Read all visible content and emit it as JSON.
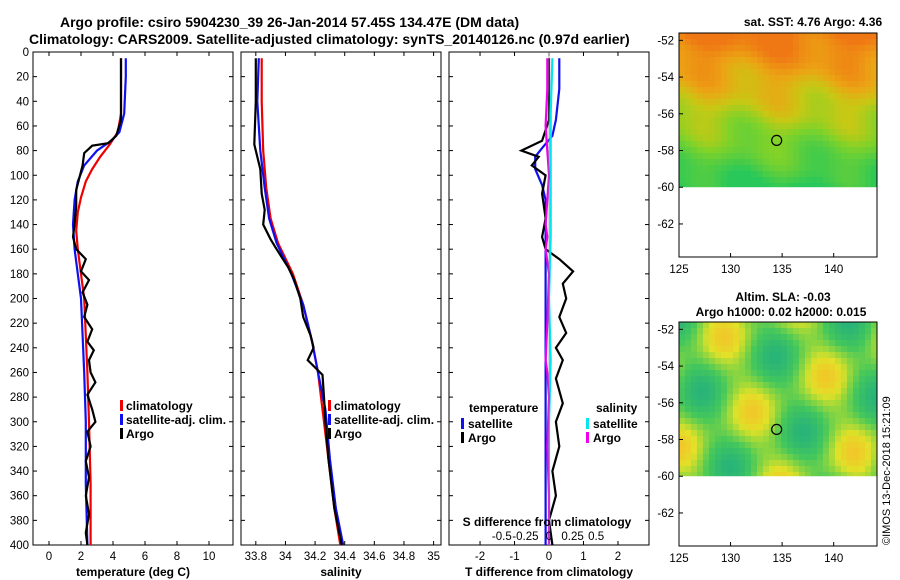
{
  "title": {
    "line1": "Argo profile: csiro 5904230_39 26-Jan-2014 57.45S 134.47E (DM data)",
    "line2": "Climatology: CARS2009. Satellite-adjusted climatology: synTS_20140126.nc (0.97d earlier)"
  },
  "colors": {
    "climatology": "#ee0000",
    "satellite": "#1010ee",
    "argo": "#000000",
    "sal_satellite": "#00e5ee",
    "sal_argo": "#ee00ee"
  },
  "chart_data": [
    {
      "id": "temperature",
      "type": "line",
      "xlabel": "temperature (deg C)",
      "xlim": [
        -1,
        11.5
      ],
      "xticks": [
        0,
        2,
        4,
        6,
        8,
        10
      ],
      "xtick_labels": [
        "0",
        "2",
        "4",
        "6",
        "8",
        "10"
      ],
      "ylim": [
        0,
        400
      ],
      "yticks": [
        0,
        20,
        40,
        60,
        80,
        100,
        120,
        140,
        160,
        180,
        200,
        220,
        240,
        260,
        280,
        300,
        320,
        340,
        360,
        380,
        400
      ],
      "ytick_labels": [
        "0",
        "20",
        "40",
        "60",
        "80",
        "100",
        "120",
        "140",
        "160",
        "180",
        "200",
        "220",
        "240",
        "260",
        "280",
        "300",
        "320",
        "340",
        "360",
        "380",
        "400"
      ],
      "legend": [
        "climatology",
        "satellite-adj. clim.",
        "Argo"
      ],
      "series": [
        {
          "name": "climatology",
          "color": "#ee0000",
          "points": [
            [
              4.5,
              5
            ],
            [
              4.5,
              20
            ],
            [
              4.5,
              50
            ],
            [
              4.3,
              65
            ],
            [
              3.8,
              75
            ],
            [
              3.2,
              85
            ],
            [
              2.7,
              95
            ],
            [
              2.3,
              105
            ],
            [
              2.0,
              118
            ],
            [
              1.8,
              130
            ],
            [
              1.7,
              145
            ],
            [
              1.8,
              160
            ],
            [
              2.0,
              180
            ],
            [
              2.2,
              200
            ],
            [
              2.3,
              230
            ],
            [
              2.4,
              260
            ],
            [
              2.5,
              300
            ],
            [
              2.6,
              350
            ],
            [
              2.6,
              400
            ]
          ]
        },
        {
          "name": "satellite-adj. clim.",
          "color": "#1010ee",
          "points": [
            [
              4.8,
              5
            ],
            [
              4.8,
              20
            ],
            [
              4.7,
              50
            ],
            [
              4.4,
              65
            ],
            [
              3.9,
              72
            ],
            [
              3.0,
              80
            ],
            [
              2.2,
              92
            ],
            [
              1.8,
              105
            ],
            [
              1.6,
              120
            ],
            [
              1.5,
              140
            ],
            [
              1.6,
              160
            ],
            [
              1.8,
              180
            ],
            [
              2.0,
              200
            ],
            [
              2.1,
              230
            ],
            [
              2.2,
              260
            ],
            [
              2.3,
              300
            ],
            [
              2.3,
              350
            ],
            [
              2.4,
              400
            ]
          ]
        },
        {
          "name": "Argo",
          "color": "#000000",
          "points": [
            [
              4.5,
              5
            ],
            [
              4.5,
              30
            ],
            [
              4.5,
              55
            ],
            [
              4.2,
              68
            ],
            [
              3.7,
              74
            ],
            [
              2.7,
              76
            ],
            [
              2.2,
              82
            ],
            [
              2.1,
              92
            ],
            [
              1.9,
              102
            ],
            [
              1.7,
              112
            ],
            [
              1.7,
              125
            ],
            [
              1.6,
              140
            ],
            [
              1.5,
              150
            ],
            [
              1.7,
              160
            ],
            [
              2.3,
              168
            ],
            [
              2.0,
              178
            ],
            [
              2.5,
              185
            ],
            [
              2.1,
              195
            ],
            [
              2.4,
              205
            ],
            [
              2.2,
              215
            ],
            [
              2.7,
              225
            ],
            [
              2.4,
              235
            ],
            [
              2.8,
              242
            ],
            [
              2.5,
              250
            ],
            [
              2.6,
              260
            ],
            [
              2.9,
              268
            ],
            [
              2.4,
              278
            ],
            [
              2.7,
              290
            ],
            [
              2.9,
              300
            ],
            [
              2.4,
              308
            ],
            [
              2.6,
              320
            ],
            [
              2.3,
              332
            ],
            [
              2.5,
              345
            ],
            [
              2.3,
              360
            ],
            [
              2.5,
              375
            ],
            [
              2.3,
              390
            ],
            [
              2.4,
              400
            ]
          ]
        }
      ]
    },
    {
      "id": "salinity",
      "type": "line",
      "xlabel": "salinity",
      "xlim": [
        33.7,
        35.05
      ],
      "xticks": [
        33.8,
        34.0,
        34.2,
        34.4,
        34.6,
        34.8,
        35.0
      ],
      "xtick_labels": [
        "33.8",
        "34",
        "34.2",
        "34.4",
        "34.6",
        "34.8",
        "35"
      ],
      "ylim": [
        0,
        400
      ],
      "legend": [
        "climatology",
        "satellite-adj. clim.",
        "Argo"
      ],
      "series": [
        {
          "name": "climatology",
          "color": "#ee0000",
          "points": [
            [
              33.84,
              5
            ],
            [
              33.84,
              40
            ],
            [
              33.85,
              80
            ],
            [
              33.87,
              110
            ],
            [
              33.9,
              135
            ],
            [
              33.95,
              155
            ],
            [
              34.05,
              180
            ],
            [
              34.12,
              205
            ],
            [
              34.18,
              235
            ],
            [
              34.22,
              260
            ],
            [
              34.25,
              290
            ],
            [
              34.29,
              330
            ],
            [
              34.33,
              370
            ],
            [
              34.37,
              400
            ]
          ]
        },
        {
          "name": "satellite-adj. clim.",
          "color": "#1010ee",
          "points": [
            [
              33.82,
              5
            ],
            [
              33.81,
              40
            ],
            [
              33.83,
              80
            ],
            [
              33.86,
              110
            ],
            [
              33.89,
              135
            ],
            [
              33.94,
              155
            ],
            [
              34.04,
              180
            ],
            [
              34.12,
              205
            ],
            [
              34.18,
              235
            ],
            [
              34.22,
              260
            ],
            [
              34.27,
              290
            ],
            [
              34.3,
              330
            ],
            [
              34.34,
              370
            ],
            [
              34.39,
              400
            ]
          ]
        },
        {
          "name": "Argo",
          "color": "#000000",
          "points": [
            [
              33.8,
              5
            ],
            [
              33.8,
              40
            ],
            [
              33.79,
              75
            ],
            [
              33.83,
              95
            ],
            [
              33.84,
              115
            ],
            [
              33.86,
              128
            ],
            [
              33.85,
              140
            ],
            [
              33.9,
              152
            ],
            [
              33.94,
              160
            ],
            [
              34.02,
              175
            ],
            [
              34.06,
              185
            ],
            [
              34.1,
              200
            ],
            [
              34.12,
              215
            ],
            [
              34.17,
              230
            ],
            [
              34.19,
              240
            ],
            [
              34.15,
              250
            ],
            [
              34.25,
              262
            ],
            [
              34.26,
              280
            ],
            [
              34.27,
              300
            ],
            [
              34.29,
              330
            ],
            [
              34.33,
              370
            ],
            [
              34.38,
              400
            ]
          ]
        }
      ]
    },
    {
      "id": "difference",
      "type": "line",
      "xlabel": "T difference from climatology",
      "top_label": "S difference from climatology",
      "xlim": [
        -2.9,
        2.9
      ],
      "xticks": [
        -2,
        -1,
        0,
        1,
        2
      ],
      "xtick_labels": [
        "-2",
        "-1",
        "0",
        "1",
        "2"
      ],
      "top_xticks": [
        -0.5,
        -0.25,
        0,
        0.25,
        0.5
      ],
      "top_xtick_labels": [
        "-0.5",
        "-0.25",
        "0",
        "0.25",
        "0.5"
      ],
      "ylim": [
        0,
        400
      ],
      "legend_temperature": {
        "title": "temperature",
        "items": [
          "satellite",
          "Argo"
        ]
      },
      "legend_salinity": {
        "title": "salinity",
        "items": [
          "satellite",
          "Argo"
        ]
      },
      "series": [
        {
          "name": "T satellite",
          "color": "#1010ee",
          "points": [
            [
              0.3,
              5
            ],
            [
              0.3,
              30
            ],
            [
              0.2,
              55
            ],
            [
              0.1,
              68
            ],
            [
              -0.2,
              78
            ],
            [
              -0.4,
              85
            ],
            [
              -0.4,
              95
            ],
            [
              -0.2,
              108
            ],
            [
              -0.1,
              120
            ],
            [
              -0.1,
              150
            ],
            [
              -0.1,
              200
            ],
            [
              -0.1,
              250
            ],
            [
              -0.1,
              300
            ],
            [
              -0.1,
              350
            ],
            [
              -0.1,
              400
            ]
          ]
        },
        {
          "name": "T Argo",
          "color": "#000000",
          "points": [
            [
              0.0,
              5
            ],
            [
              0.0,
              55
            ],
            [
              -0.2,
              72
            ],
            [
              -0.8,
              80
            ],
            [
              -0.3,
              85
            ],
            [
              -0.5,
              92
            ],
            [
              -0.1,
              100
            ],
            [
              -0.2,
              115
            ],
            [
              -0.1,
              135
            ],
            [
              -0.2,
              150
            ],
            [
              -0.1,
              160
            ],
            [
              0.3,
              168
            ],
            [
              0.7,
              178
            ],
            [
              0.4,
              188
            ],
            [
              0.5,
              200
            ],
            [
              0.3,
              215
            ],
            [
              0.5,
              228
            ],
            [
              0.2,
              240
            ],
            [
              0.4,
              250
            ],
            [
              0.2,
              265
            ],
            [
              0.4,
              285
            ],
            [
              0.2,
              300
            ],
            [
              0.3,
              320
            ],
            [
              0.1,
              340
            ],
            [
              0.2,
              360
            ],
            [
              0.0,
              380
            ],
            [
              0.1,
              400
            ]
          ]
        },
        {
          "name": "S satellite",
          "color": "#00e5ee",
          "points": [
            [
              0.1,
              5
            ],
            [
              0.05,
              50
            ],
            [
              0.05,
              100
            ],
            [
              0.05,
              150
            ],
            [
              0.0,
              200
            ],
            [
              0.05,
              250
            ],
            [
              0.0,
              300
            ],
            [
              0.0,
              350
            ],
            [
              0.0,
              400
            ]
          ]
        },
        {
          "name": "S Argo",
          "color": "#ee00ee",
          "points": [
            [
              -0.05,
              5
            ],
            [
              -0.05,
              30
            ],
            [
              -0.1,
              60
            ],
            [
              0.0,
              100
            ],
            [
              -0.05,
              120
            ],
            [
              -0.1,
              140
            ],
            [
              -0.05,
              150
            ],
            [
              -0.1,
              160
            ],
            [
              0.0,
              180
            ],
            [
              -0.05,
              220
            ],
            [
              -0.1,
              250
            ],
            [
              -0.05,
              260
            ],
            [
              0.0,
              280
            ],
            [
              -0.05,
              320
            ],
            [
              0.0,
              360
            ],
            [
              0.0,
              400
            ]
          ]
        }
      ]
    }
  ],
  "maps": [
    {
      "id": "sst-map",
      "title": "sat. SST: 4.76 Argo: 4.36",
      "xticks": [
        125,
        130,
        135,
        140
      ],
      "xtick_labels": [
        "125",
        "130",
        "135",
        "140"
      ],
      "yticks": [
        -52,
        -54,
        -56,
        -58,
        -60,
        -62
      ],
      "ytick_labels": [
        "-52",
        "-54",
        "-56",
        "-58",
        "-60",
        "-62"
      ],
      "xlim": [
        125,
        144.2
      ],
      "ylim": [
        -63.8,
        -51.6
      ],
      "data_extent_lat": [
        -51.6,
        -60
      ],
      "profile_marker": {
        "lon": 134.47,
        "lat": -57.45
      }
    },
    {
      "id": "sla-map",
      "title": "Altim. SLA: -0.03",
      "subtitle": "Argo h1000: 0.02 h2000: 0.015",
      "xticks": [
        125,
        130,
        135,
        140
      ],
      "xtick_labels": [
        "125",
        "130",
        "135",
        "140"
      ],
      "yticks": [
        -52,
        -54,
        -56,
        -58,
        -60,
        -62
      ],
      "ytick_labels": [
        "-52",
        "-54",
        "-56",
        "-58",
        "-60",
        "-62"
      ],
      "xlim": [
        125,
        144.2
      ],
      "ylim": [
        -63.8,
        -51.6
      ],
      "data_extent_lat": [
        -51.6,
        -60
      ],
      "profile_marker": {
        "lon": 134.47,
        "lat": -57.45
      }
    }
  ],
  "credit": "©IMOS 13-Dec-2018 15:21:09"
}
